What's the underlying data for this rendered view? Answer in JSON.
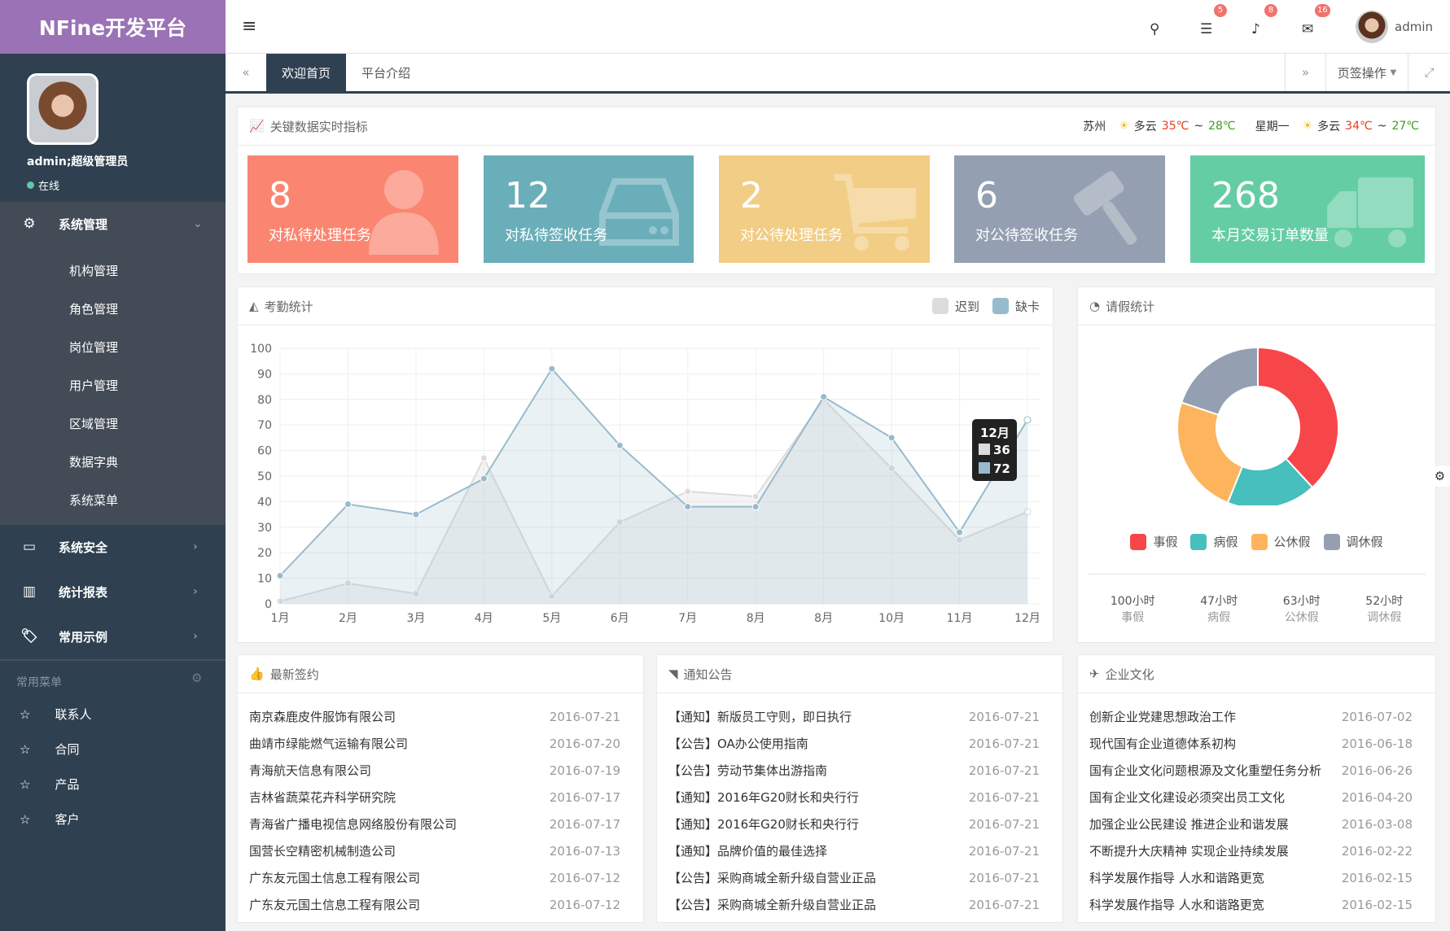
{
  "app": {
    "title": "NFine开发平台"
  },
  "user": {
    "name": "admin;超级管理员",
    "status": "在线",
    "short": "admin"
  },
  "sidebar": {
    "menus": [
      {
        "label": "系统管理",
        "icon": "gears-icon",
        "expanded": true,
        "children": [
          "机构管理",
          "角色管理",
          "岗位管理",
          "用户管理",
          "区域管理",
          "数据字典",
          "系统菜单"
        ]
      },
      {
        "label": "系统安全",
        "icon": "desktop-icon"
      },
      {
        "label": "统计报表",
        "icon": "bar-chart-icon"
      },
      {
        "label": "常用示例",
        "icon": "tags-icon"
      }
    ],
    "favorites_title": "常用菜单",
    "favorites": [
      "联系人",
      "合同",
      "产品",
      "客户"
    ]
  },
  "header": {
    "badges": {
      "tasks": "5",
      "notifications": "8",
      "messages": "16"
    }
  },
  "tabs": {
    "items": [
      "欢迎首页",
      "平台介绍"
    ],
    "active": 0,
    "actions": "页签操作"
  },
  "indicators": {
    "title": "关键数据实时指标",
    "weather": {
      "city": "苏州",
      "today": {
        "desc": "多云",
        "high": "35℃",
        "sep": "~",
        "low": "28℃"
      },
      "weekday": "星期一",
      "tomorrow": {
        "desc": "多云",
        "high": "34℃",
        "sep": "~",
        "low": "27℃"
      }
    },
    "cards": [
      {
        "value": "8",
        "label": "对私待处理任务",
        "color": "#fa8672",
        "icon": "user-icon"
      },
      {
        "value": "12",
        "label": "对私待签收任务",
        "color": "#6aaeb9",
        "icon": "hdd-icon"
      },
      {
        "value": "2",
        "label": "对公待处理任务",
        "color": "#f2cd85",
        "icon": "cart-icon"
      },
      {
        "value": "6",
        "label": "对公待签收任务",
        "color": "#949fb1",
        "icon": "gavel-icon"
      },
      {
        "value": "268",
        "label": "本月交易订单数量",
        "color": "#65cda4",
        "icon": "truck-icon"
      }
    ]
  },
  "chart_data": [
    {
      "type": "area",
      "title": "考勤统计",
      "categories": [
        "1月",
        "2月",
        "3月",
        "4月",
        "5月",
        "6月",
        "7月",
        "8月",
        "8月",
        "10月",
        "11月",
        "12月"
      ],
      "series": [
        {
          "name": "迟到",
          "color": "#dcdcdc",
          "values": [
            1,
            8,
            4,
            57,
            3,
            32,
            44,
            42,
            80,
            53,
            25,
            36
          ]
        },
        {
          "name": "缺卡",
          "color": "#97bbcd",
          "values": [
            11,
            39,
            35,
            49,
            92,
            62,
            38,
            38,
            81,
            65,
            28,
            72
          ]
        }
      ],
      "ylim": [
        0,
        100
      ],
      "yticks": [
        0,
        10,
        20,
        30,
        40,
        50,
        60,
        70,
        80,
        90,
        100
      ],
      "grid": true,
      "legend": "top-right",
      "tooltip": {
        "label": "12月",
        "values": [
          "36",
          "72"
        ]
      }
    },
    {
      "type": "pie",
      "title": "请假统计",
      "donut": true,
      "legend": "bottom",
      "labels": [
        "事假",
        "病假",
        "公休假",
        "调休假"
      ],
      "values": [
        100,
        47,
        63,
        52
      ],
      "colors": [
        "#f7464a",
        "#46bfbd",
        "#fdb45c",
        "#949fb1"
      ],
      "stats": [
        {
          "value": "100小时",
          "label": "事假"
        },
        {
          "value": "47小时",
          "label": "病假"
        },
        {
          "value": "63小时",
          "label": "公休假"
        },
        {
          "value": "52小时",
          "label": "调休假"
        }
      ]
    }
  ],
  "lists": [
    {
      "title": "最新签约",
      "icon": "thumbs-up-icon",
      "rows": [
        [
          "南京森鹿皮件服饰有限公司",
          "2016-07-21"
        ],
        [
          "曲靖市绿能燃气运输有限公司",
          "2016-07-20"
        ],
        [
          "青海航天信息有限公司",
          "2016-07-19"
        ],
        [
          "吉林省蔬菜花卉科学研究院",
          "2016-07-17"
        ],
        [
          "青海省广播电视信息网络股份有限公司",
          "2016-07-17"
        ],
        [
          "国营长空精密机械制造公司",
          "2016-07-13"
        ],
        [
          "广东友元国土信息工程有限公司",
          "2016-07-12"
        ],
        [
          "广东友元国土信息工程有限公司",
          "2016-07-12"
        ]
      ]
    },
    {
      "title": "通知公告",
      "icon": "rss-icon",
      "rows": [
        [
          "【通知】新版员工守则，即日执行",
          "2016-07-21"
        ],
        [
          "【公告】OA办公使用指南",
          "2016-07-21"
        ],
        [
          "【公告】劳动节集体出游指南",
          "2016-07-21"
        ],
        [
          "【通知】2016年G20财长和央行行",
          "2016-07-21"
        ],
        [
          "【通知】2016年G20财长和央行行",
          "2016-07-21"
        ],
        [
          "【通知】品牌价值的最佳选择",
          "2016-07-21"
        ],
        [
          "【公告】采购商城全新升级自营业正品",
          "2016-07-21"
        ],
        [
          "【公告】采购商城全新升级自营业正品",
          "2016-07-21"
        ]
      ]
    },
    {
      "title": "企业文化",
      "icon": "paper-plane-icon",
      "rows": [
        [
          "创新企业党建思想政治工作",
          "2016-07-02"
        ],
        [
          "现代国有企业道德体系初构",
          "2016-06-18"
        ],
        [
          "国有企业文化问题根源及文化重塑任务分析",
          "2016-06-26"
        ],
        [
          "国有企业文化建设必须突出员工文化",
          "2016-04-20"
        ],
        [
          "加强企业公民建设 推进企业和谐发展",
          "2016-03-08"
        ],
        [
          "不断提升大庆精神 实现企业持续发展",
          "2016-02-22"
        ],
        [
          "科学发展作指导 人水和谐路更宽",
          "2016-02-15"
        ],
        [
          "科学发展作指导 人水和谐路更宽",
          "2016-02-15"
        ]
      ]
    }
  ]
}
